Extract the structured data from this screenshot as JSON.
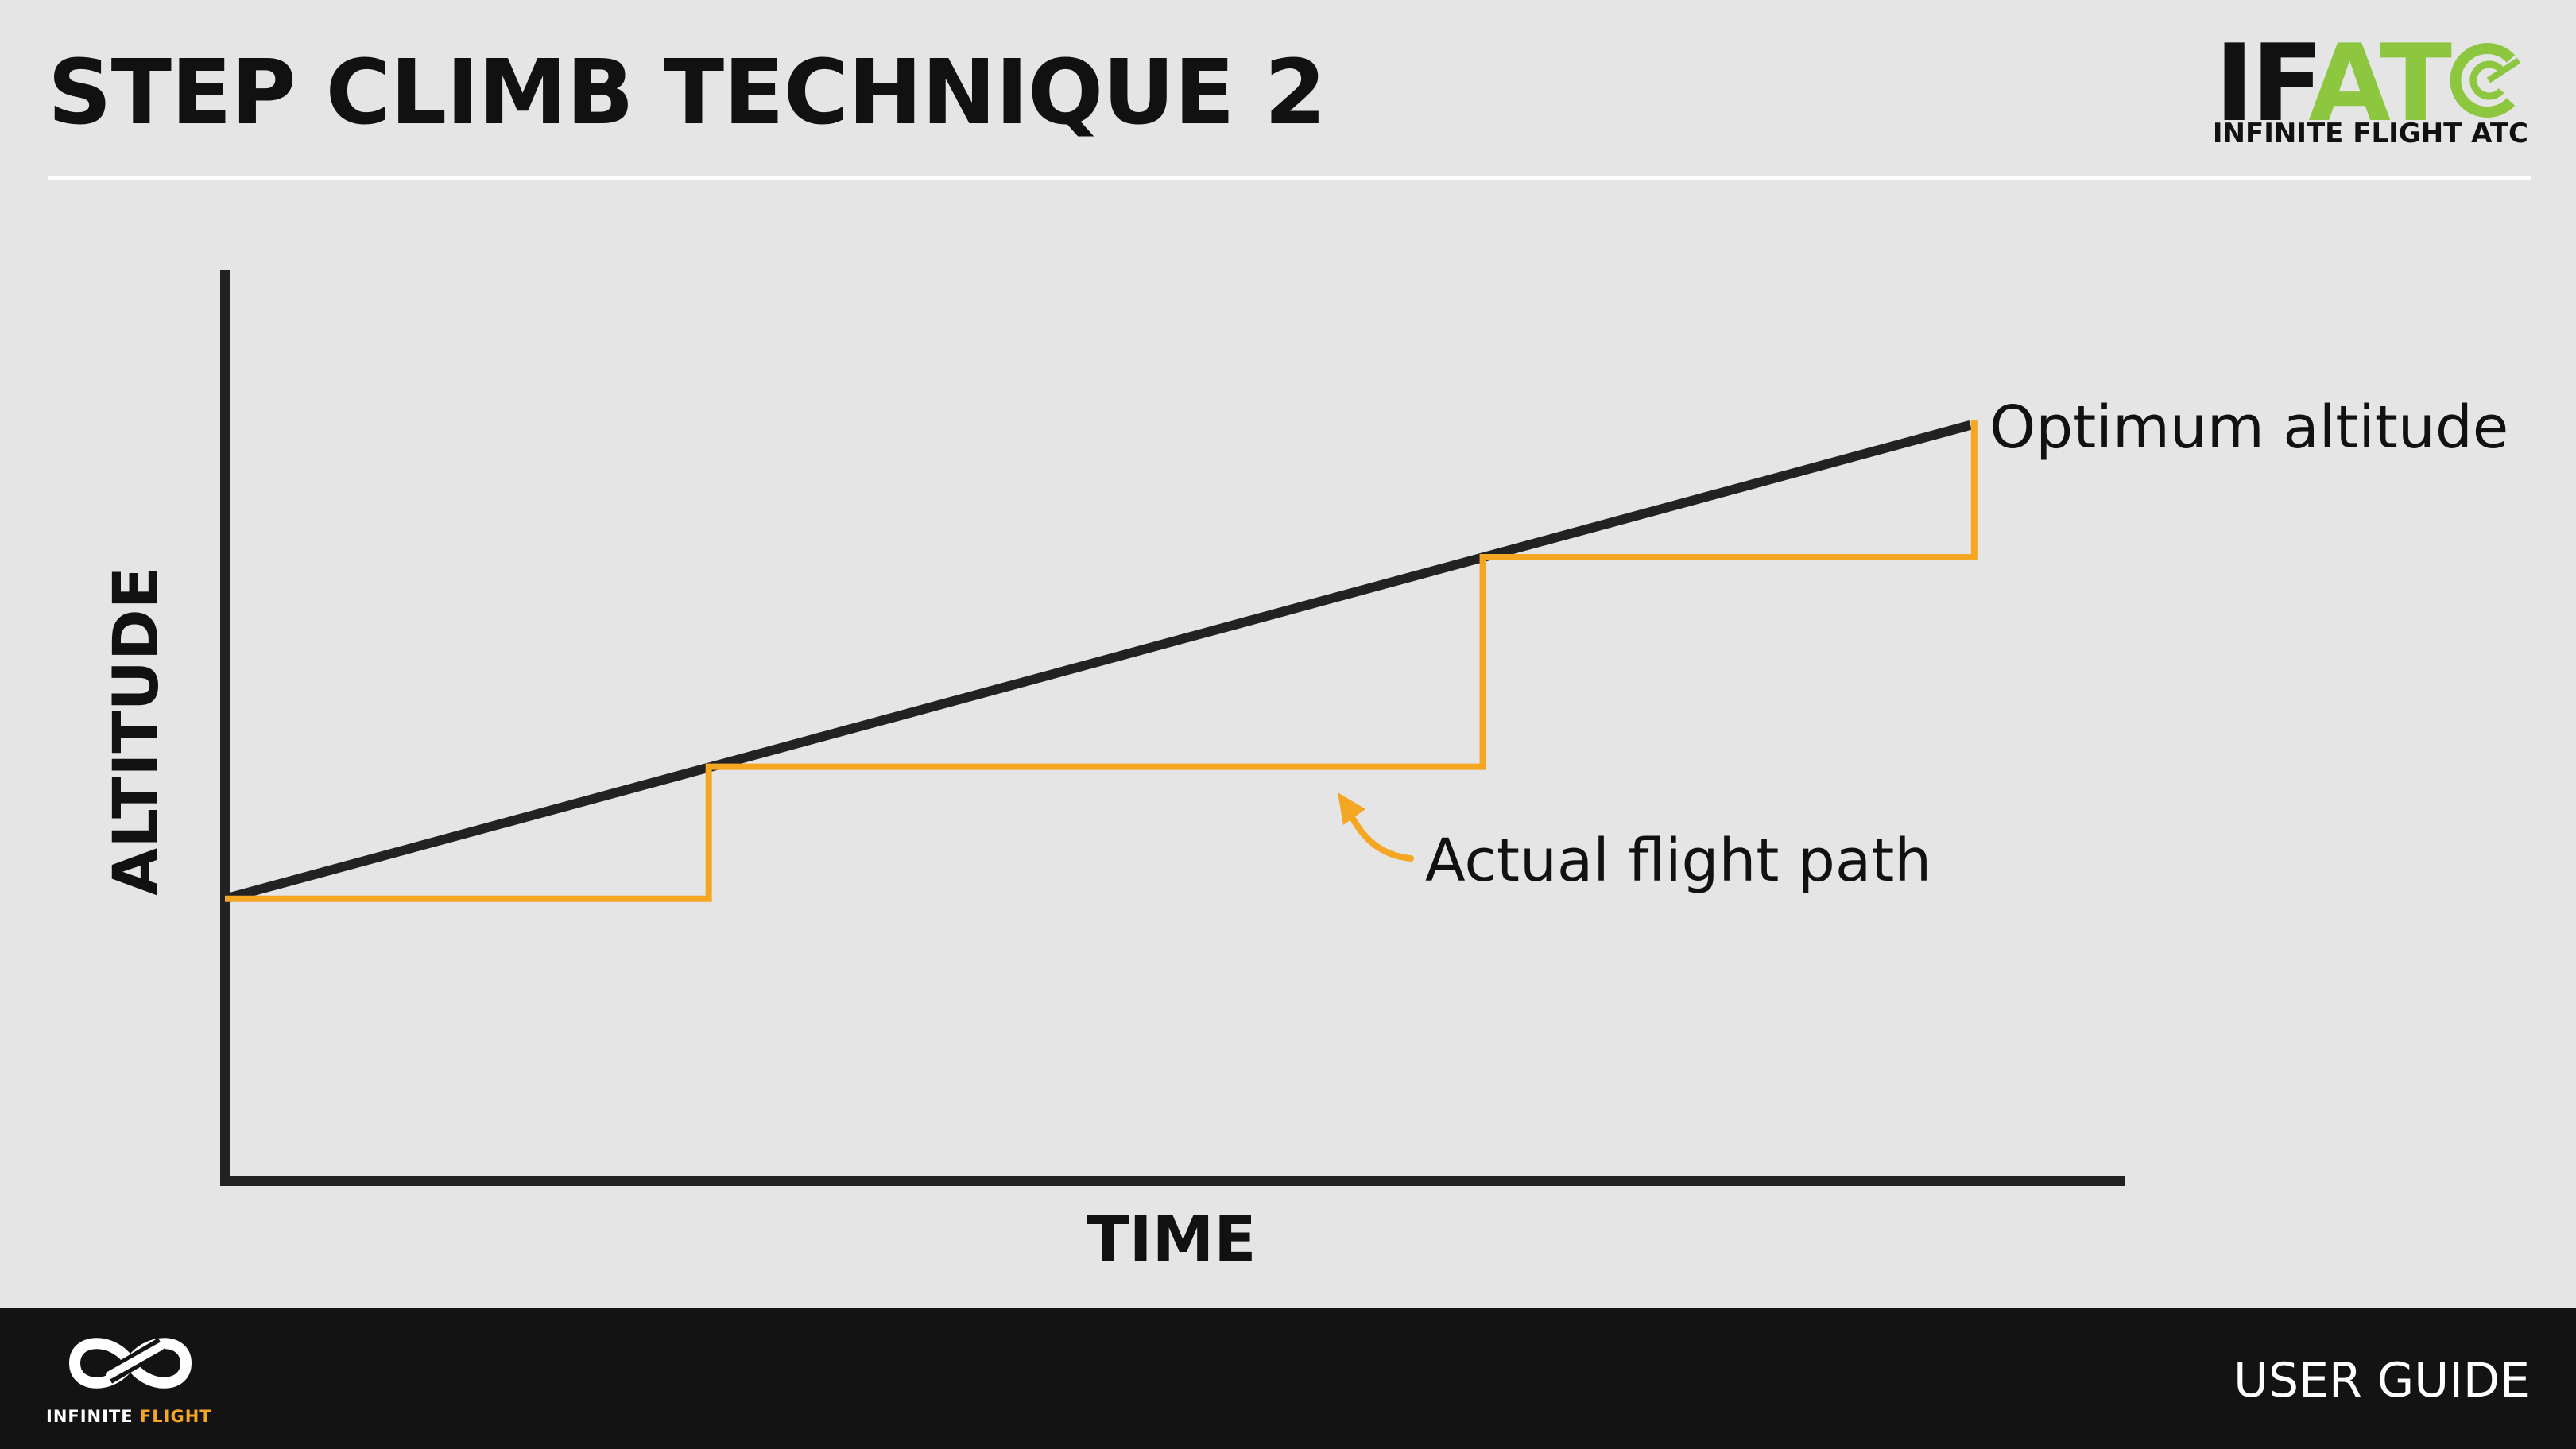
{
  "page": {
    "title": "STEP CLIMB TECHNIQUE 2"
  },
  "logo": {
    "letters_if": "IF",
    "letters_at": "AT",
    "letter_c": "C",
    "subtitle": "INFINITE FLIGHT ATC"
  },
  "colors": {
    "optimum_line": "#222222",
    "flight_path": "#f5a623",
    "logo_accent": "#8dc63f",
    "footer_bg": "#131313"
  },
  "chart_data": {
    "type": "line",
    "title": "",
    "xlabel": "TIME",
    "ylabel": "ALTITUDE",
    "xlim": [
      0,
      100
    ],
    "ylim": [
      0,
      100
    ],
    "grid": false,
    "series": [
      {
        "name": "Optimum altitude",
        "x": [
          0,
          92
        ],
        "y": [
          31,
          83
        ]
      },
      {
        "name": "Actual flight path",
        "x": [
          0,
          25.5,
          25.5,
          66.3,
          66.3,
          92.2,
          92.2
        ],
        "y": [
          31,
          31,
          45.5,
          45.5,
          68.5,
          68.5,
          83.5
        ]
      }
    ],
    "annotations": [
      {
        "text": "Optimum altitude",
        "series": "Optimum altitude"
      },
      {
        "text": "Actual flight path",
        "series": "Actual flight path",
        "arrow": true
      }
    ]
  },
  "footer": {
    "brand_part1": "INFINITE ",
    "brand_part2": "FLIGHT",
    "label": "USER GUIDE"
  }
}
